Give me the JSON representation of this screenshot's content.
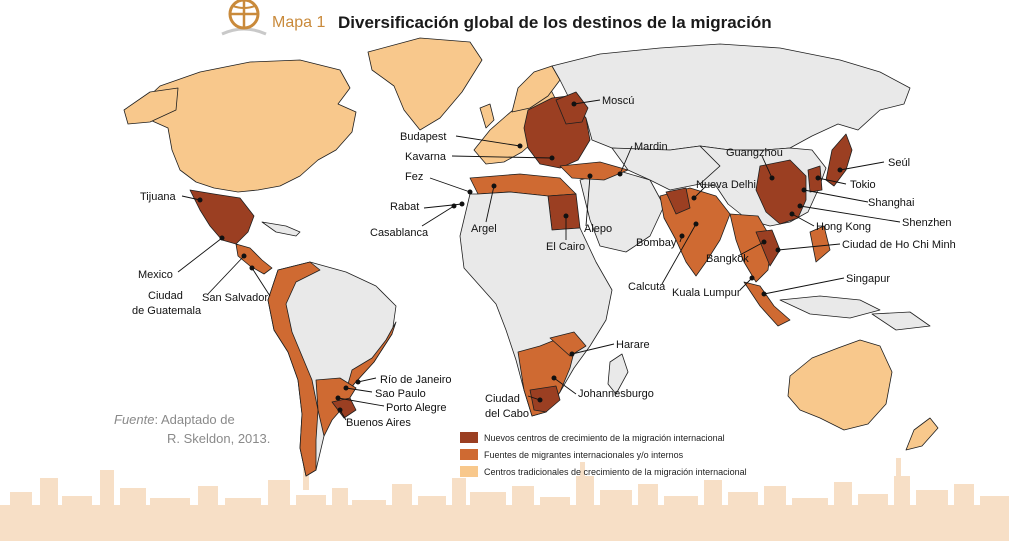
{
  "header": {
    "map_label": "Mapa 1",
    "title": "Diversificación global de los destinos de la migración"
  },
  "source": {
    "label": "Fuente",
    "line1": "Adaptado de",
    "line2": "R. Skeldon, 2013."
  },
  "legend": [
    {
      "label": "Nuevos centros de crecimiento de la migración internacional",
      "color": "#9b3f22"
    },
    {
      "label": "Fuentes de migrantes internacionales y/o internos",
      "color": "#cf6a32"
    },
    {
      "label": "Centros tradicionales de crecimiento de la migración internacional",
      "color": "#f8c88c"
    }
  ],
  "colors": {
    "land_other": "#e9e9e9",
    "border": "#222222",
    "skyline": "#f6dcc0"
  },
  "cities": [
    "Moscú",
    "Budapest",
    "Kavarna",
    "Mardin",
    "Fez",
    "Rabat",
    "Casablanca",
    "Argel",
    "Alepo",
    "El Cairo",
    "Bombay",
    "Nueva Delhi",
    "Guangzhou",
    "Seúl",
    "Tokio",
    "Shanghai",
    "Shenzhen",
    "Hong Kong",
    "Ciudad de Ho Chi Minh",
    "Bangkok",
    "Singapur",
    "Calcuta",
    "Kuala Lumpur",
    "Tijuana",
    "Mexico",
    "Ciudad de Guatemala",
    "San Salvador",
    "Río de Janeiro",
    "Sao Paulo",
    "Porto Alegre",
    "Buenos Aires",
    "Harare",
    "Johannesburgo",
    "Ciudad del Cabo"
  ]
}
